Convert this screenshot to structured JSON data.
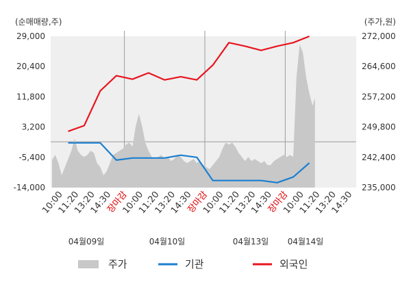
{
  "chart_data": {
    "type": "line",
    "left_unit_label": "(순매매량,주)",
    "right_unit_label": "(주가,원)",
    "y_left": {
      "ticks": [
        "29,000",
        "20,400",
        "11,800",
        "3,200",
        "-5,400",
        "-14,000"
      ],
      "range": [
        -14000,
        29000
      ]
    },
    "y_right": {
      "ticks": [
        "272,000",
        "264,600",
        "257,200",
        "249,800",
        "242,400",
        "235,000"
      ],
      "range": [
        235000,
        272000
      ]
    },
    "x_tick_labels": [
      "10:00",
      "11:20",
      "13:20",
      "14:30",
      "장마감",
      "10:00",
      "11:20",
      "13:20",
      "14:30",
      "장마감",
      "10:00",
      "11:20",
      "13:20",
      "14:30",
      "장마감",
      "10:00",
      "11:20",
      "13:20",
      "14:30"
    ],
    "close_label": "장마감",
    "date_labels": [
      "04월09일",
      "04월10일",
      "04월13일",
      "04월14일"
    ],
    "day_separator_slots": [
      4,
      9,
      14
    ],
    "total_slots": 19,
    "legend": [
      {
        "key": "price",
        "label": "주가",
        "color": "#c8c8c8"
      },
      {
        "key": "inst",
        "label": "기관",
        "color": "#1a7fd0"
      },
      {
        "key": "foreign",
        "label": "외국인",
        "color": "#e8141e"
      }
    ],
    "series": [
      {
        "name": "외국인",
        "axis": "left",
        "color": "#e8141e",
        "points": [
          [
            1,
            2000
          ],
          [
            2,
            3600
          ],
          [
            3,
            13500
          ],
          [
            4,
            17800
          ],
          [
            5,
            16800
          ],
          [
            6,
            18600
          ],
          [
            7,
            16600
          ],
          [
            8,
            17500
          ],
          [
            9,
            16600
          ],
          [
            10,
            20800
          ],
          [
            11,
            27200
          ],
          [
            12,
            26200
          ],
          [
            13,
            25000
          ],
          [
            14,
            26200
          ],
          [
            15,
            27200
          ],
          [
            16,
            29000
          ]
        ]
      },
      {
        "name": "기관",
        "axis": "left",
        "color": "#1a7fd0",
        "points": [
          [
            1,
            -1300
          ],
          [
            3,
            -1300
          ],
          [
            4,
            -6200
          ],
          [
            5,
            -5600
          ],
          [
            6,
            -5600
          ],
          [
            7,
            -5600
          ],
          [
            8,
            -4800
          ],
          [
            9,
            -5400
          ],
          [
            10,
            -12000
          ],
          [
            11,
            -12000
          ],
          [
            12,
            -12000
          ],
          [
            13,
            -12000
          ],
          [
            14,
            -12600
          ],
          [
            15,
            -11000
          ],
          [
            16,
            -7000
          ]
        ]
      },
      {
        "name": "주가",
        "axis": "right",
        "color": "#c8c8c8",
        "points": [
          [
            0,
            241800
          ],
          [
            0.2,
            243000
          ],
          [
            0.4,
            241000
          ],
          [
            0.6,
            238000
          ],
          [
            0.8,
            240000
          ],
          [
            1.0,
            242000
          ],
          [
            1.2,
            244000
          ],
          [
            1.4,
            247000
          ],
          [
            1.6,
            244000
          ],
          [
            1.8,
            243000
          ],
          [
            2.0,
            242500
          ],
          [
            2.2,
            243000
          ],
          [
            2.4,
            244000
          ],
          [
            2.6,
            243500
          ],
          [
            2.8,
            241000
          ],
          [
            3.0,
            240000
          ],
          [
            3.2,
            238000
          ],
          [
            3.4,
            239000
          ],
          [
            3.6,
            241000
          ],
          [
            3.8,
            243000
          ],
          [
            4.0,
            243500
          ],
          [
            4.2,
            244000
          ],
          [
            4.4,
            244500
          ],
          [
            4.6,
            245500
          ],
          [
            4.8,
            246000
          ],
          [
            5.0,
            245000
          ],
          [
            5.2,
            250000
          ],
          [
            5.4,
            253000
          ],
          [
            5.6,
            250000
          ],
          [
            5.8,
            246000
          ],
          [
            6.0,
            244000
          ],
          [
            6.2,
            242500
          ],
          [
            6.4,
            242000
          ],
          [
            6.6,
            242500
          ],
          [
            6.8,
            243000
          ],
          [
            7.0,
            242000
          ],
          [
            7.2,
            242500
          ],
          [
            7.4,
            241500
          ],
          [
            7.6,
            242000
          ],
          [
            7.8,
            243000
          ],
          [
            8.0,
            242500
          ],
          [
            8.2,
            241500
          ],
          [
            8.4,
            241000
          ],
          [
            8.6,
            241500
          ],
          [
            8.8,
            242000
          ],
          [
            9.0,
            241000
          ],
          [
            9.2,
            241500
          ],
          [
            9.4,
            240500
          ],
          [
            9.6,
            240000
          ],
          [
            9.8,
            239500
          ],
          [
            10.0,
            240500
          ],
          [
            10.2,
            241500
          ],
          [
            10.4,
            242500
          ],
          [
            10.6,
            244500
          ],
          [
            10.8,
            246000
          ],
          [
            11.0,
            245500
          ],
          [
            11.2,
            246000
          ],
          [
            11.4,
            245000
          ],
          [
            11.6,
            243500
          ],
          [
            11.8,
            242500
          ],
          [
            12.0,
            241500
          ],
          [
            12.2,
            242500
          ],
          [
            12.4,
            241500
          ],
          [
            12.6,
            242000
          ],
          [
            12.8,
            241500
          ],
          [
            13.0,
            241000
          ],
          [
            13.2,
            241500
          ],
          [
            13.4,
            240500
          ],
          [
            13.6,
            240500
          ],
          [
            13.8,
            241500
          ],
          [
            14.0,
            242000
          ],
          [
            14.2,
            242500
          ],
          [
            14.4,
            243000
          ],
          [
            14.6,
            242500
          ],
          [
            14.8,
            243000
          ],
          [
            15.0,
            242500
          ],
          [
            15.2,
            262000
          ],
          [
            15.4,
            270000
          ],
          [
            15.6,
            268000
          ],
          [
            15.8,
            262000
          ],
          [
            16.0,
            258000
          ],
          [
            16.2,
            255000
          ],
          [
            16.35,
            257000
          ]
        ]
      }
    ]
  }
}
